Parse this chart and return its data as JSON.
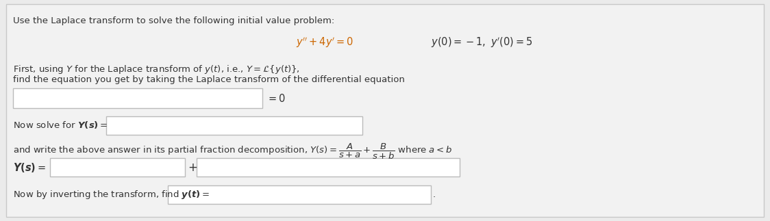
{
  "bg_color": "#ebebeb",
  "inner_bg": "#f2f2f2",
  "border_color": "#c8c8c8",
  "title_text": "Use the Laplace transform to solve the following initial value problem:",
  "title_color": "#333333",
  "eq1_text": "$y'' + 4y' = 0$",
  "eq1_color": "#cc6600",
  "eq2_text": "$y(0) = -1,\\ y'(0) = 5$",
  "eq2_color": "#333333",
  "para1_line1": "First, using $Y$ for the Laplace transform of $y(t)$, i.e., $Y = \\mathcal{L}\\{y(t)\\}$,",
  "para1_line2": "find the equation you get by taking the Laplace transform of the differential equation",
  "para1_color": "#333333",
  "eq0_text": "$= 0$",
  "solve_text": "Now solve for $\\boldsymbol{Y(s)} = $",
  "solve_color": "#333333",
  "partial_text": "and write the above answer in its partial fraction decomposition, $Y(s) = \\dfrac{A}{s+a} + \\dfrac{B}{s+b}$ where $a < b$",
  "partial_color": "#333333",
  "Ys_label": "$\\boldsymbol{Y(s)} = $",
  "Ys_color": "#333333",
  "plus_text": "+",
  "invert_text": "Now by inverting the transform, find $\\boldsymbol{y(t)} = $",
  "invert_color": "#333333",
  "period_text": ".",
  "box_edge_color": "#bbbbbb",
  "box_face_color": "#ffffff"
}
